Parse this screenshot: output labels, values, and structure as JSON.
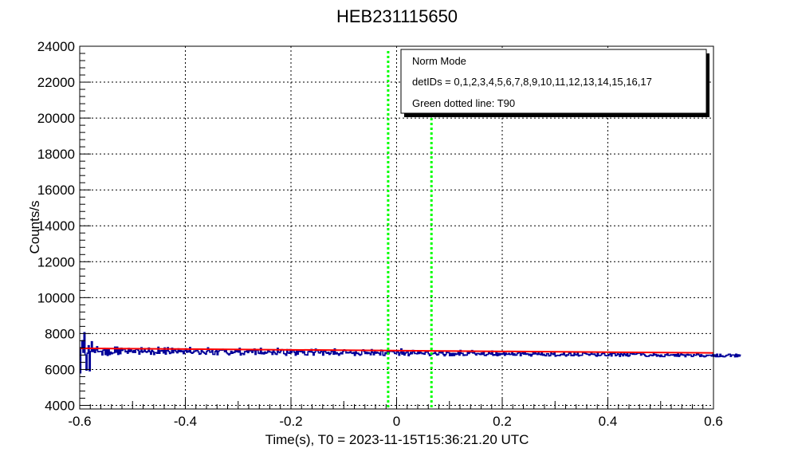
{
  "chart_data": {
    "type": "line",
    "title": "HEB231115650",
    "xlabel": "Time(s), T0 = 2023-11-15T15:36:21.20 UTC",
    "ylabel": "Counts/s",
    "xlim": [
      -0.6,
      0.6
    ],
    "ylim": [
      3800,
      24000
    ],
    "x_ticks": [
      -0.6,
      -0.4,
      -0.2,
      0,
      0.2,
      0.4,
      0.6
    ],
    "x_tick_labels": [
      "-0.6",
      "-0.4",
      "-0.2",
      "0",
      "0.2",
      "0.4",
      "0.6"
    ],
    "y_ticks": [
      4000,
      6000,
      8000,
      10000,
      12000,
      14000,
      16000,
      18000,
      20000,
      22000,
      24000
    ],
    "y_tick_labels": [
      "4000",
      "6000",
      "8000",
      "10000",
      "12000",
      "14000",
      "16000",
      "18000",
      "20000",
      "22000",
      "24000"
    ],
    "grid": true,
    "legend_position": "top-right",
    "legend": [
      "Norm Mode",
      "detIDs = 0,1,2,3,4,5,6,7,8,9,10,11,12,13,14,15,16,17",
      "Green dotted line: T90"
    ],
    "series": [
      {
        "kind": "histogram-step",
        "color": "#000099",
        "bin_width": 0.002,
        "x_start": -0.6,
        "values": [
          5813,
          7210,
          7602,
          6952,
          8048,
          6808,
          5965,
          6903,
          7324,
          5930,
          7003,
          7541,
          7001,
          7154,
          6948,
          7086,
          7264,
          6987,
          6999,
          6996,
          7012,
          6808,
          7074,
          7167,
          6835,
          7146,
          6781,
          7120,
          6834,
          6967,
          6878,
          6919,
          6924,
          7244,
          6960,
          7244,
          6838,
          7166,
          6875,
          7184,
          7061,
          7137,
          7133,
          6983,
          7019,
          6904,
          7169,
          6994,
          7160,
          7021,
          6949,
          7052,
          6948,
          7126,
          7121,
          7066,
          6856,
          6996,
          7210,
          6952,
          7009,
          7133,
          6993,
          6954,
          7007,
          7195,
          6987,
          6848,
          7062,
          7000,
          6833,
          6939,
          6937,
          6898,
          7239,
          6896,
          7043,
          7027,
          7055,
          6920,
          7198,
          6854,
          7050,
          7214,
          7006,
          6889,
          6926,
          7184,
          6932,
          7058,
          7089,
          6989,
          6928,
          7152,
          6992,
          7055,
          6989,
          7035,
          6882,
          7035,
          7149,
          6958,
          7040,
          6976,
          7223,
          6942,
          6901,
          6944,
          7033,
          7012,
          7054,
          7057,
          6970,
          6850,
          6875,
          7063,
          6988,
          6949,
          6898,
          6848,
          7012,
          7205,
          7061,
          6960,
          6968,
          7101,
          6841,
          6840,
          7001,
          7075,
          6820,
          7010,
          7078,
          7110,
          7075,
          7124,
          7082,
          6985,
          7049,
          6920,
          6867,
          6817,
          6883,
          7009,
          6901,
          6969,
          6935,
          7080,
          6990,
          7058,
          6968,
          7177,
          6805,
          6897,
          6885,
          6834,
          6992,
          6988,
          7037,
          6937,
          7106,
          7033,
          7105,
          6943,
          7051,
          7136,
          6839,
          7083,
          7066,
          6910,
          6889,
          7175,
          6876,
          6936,
          6868,
          6971,
          6902,
          6936,
          7046,
          7003,
          6965,
          6964,
          6837,
          7081,
          6952,
          6865,
          6837,
          7180,
          6967,
          6931,
          7037,
          7106,
          7094,
          6885,
          6866,
          6787,
          7108,
          6922,
          6900,
          7103,
          6938,
          7042,
          7073,
          6948,
          6796,
          7081,
          6855,
          7007,
          7005,
          6985,
          7064,
          6919,
          6997,
          6819,
          6818,
          6805,
          6988,
          7012,
          6974,
          7119,
          6956,
          6798,
          6947,
          7134,
          7045,
          7047,
          6926,
          6913,
          7039,
          6987,
          6798,
          7068,
          7004,
          6929,
          6899,
          6957,
          6840,
          6890,
          7006,
          7002,
          6847,
          7145,
          6863,
          6931,
          6870,
          6796,
          6879,
          6937,
          6873,
          7011,
          7096,
          7060,
          6922,
          6950,
          6921,
          6942,
          6994,
          6913,
          6893,
          6951,
          6784,
          6980,
          6885,
          6911,
          6849,
          6792,
          6839,
          7068,
          7097,
          7001,
          6889,
          6961,
          6880,
          6940,
          6902,
          6819,
          7108,
          6948,
          6821,
          6976,
          6902,
          6962,
          6922,
          6906,
          6809,
          7076,
          7025,
          6796,
          6778,
          6935,
          6876,
          7061,
          6887,
          7003,
          7043,
          7012,
          6996,
          6974,
          6895,
          6882,
          7052,
          6964,
          6792,
          6919,
          7142,
          6854,
          6969,
          6805,
          6909,
          6958,
          7036,
          6763,
          6857,
          6949,
          6874,
          7058,
          6974,
          6887,
          6891,
          6873,
          6985,
          6887,
          7010,
          6920,
          6875,
          6900,
          6850,
          6961,
          6985,
          6973,
          6869,
          6772,
          6821,
          6851,
          6885,
          6899,
          6947,
          6864,
          6804,
          6831,
          6948,
          6994,
          6916,
          6976,
          6836,
          6760,
          6830,
          6954,
          6937,
          6934,
          6769,
          6887,
          6772,
          6896,
          6777,
          6889,
          6836,
          6862,
          7011,
          6800,
          7060,
          6890,
          6902,
          6780,
          6813,
          6793,
          6804,
          6970,
          6890,
          6959,
          6960,
          7056,
          6913,
          6965,
          6869,
          6808,
          6891,
          6888,
          6861,
          6835,
          6917,
          6844,
          6940,
          6784,
          6774,
          6831,
          6842,
          6940,
          6900,
          6853,
          7027,
          6786,
          6826,
          6797,
          6980,
          6766,
          6897,
          6799,
          6882,
          6841,
          6858,
          6961,
          6787,
          6904,
          6846,
          6849,
          6897,
          6835,
          6847,
          6966,
          6798,
          6871,
          6796,
          6805,
          6893,
          6939,
          6972,
          6764,
          6896,
          6958,
          6854,
          7000,
          6845,
          6877,
          6862,
          6793,
          6851,
          6747,
          6837,
          6920,
          6868,
          6923,
          6869,
          6830,
          6943,
          6851,
          6824,
          6954,
          6792,
          6845,
          6783,
          6762,
          6880,
          6871,
          6753,
          6778,
          6949,
          6869,
          6831,
          6956,
          6738,
          6775,
          6789,
          6784,
          6771,
          6829,
          6848,
          6821,
          6958,
          6802,
          6741,
          6814,
          6797,
          6939,
          6904,
          6771,
          6802,
          6764,
          6916,
          6815,
          6812,
          6940,
          6748,
          6790,
          6789,
          6792,
          6919,
          6933,
          6895,
          6879,
          6850,
          6842,
          6793,
          6837,
          6923,
          6855,
          6837,
          6859,
          6782,
          6738,
          6916,
          6771,
          6774,
          6797,
          6872,
          6911,
          6894,
          6787,
          6770,
          6760,
          6770,
          6834,
          6929,
          6748,
          6911,
          6886,
          6894,
          6768,
          6797,
          6872,
          6840,
          6729,
          6902,
          6839,
          6760,
          6914,
          6840,
          6763,
          6888,
          6739,
          6765,
          6927,
          6887,
          6851,
          6892,
          6841,
          6848,
          6879,
          6902,
          6917,
          6905,
          6799,
          6863,
          6865,
          6832,
          6770,
          6728,
          6735,
          6730,
          6780,
          6813,
          6787,
          6763,
          6900,
          6809,
          6838,
          6739,
          6805,
          6776,
          6718,
          6808,
          6730,
          6715,
          6715,
          6824,
          6804,
          6864,
          6780,
          6783,
          6809,
          6819,
          6801,
          6830,
          6742,
          6828,
          6736,
          6865,
          6728,
          6801,
          6864,
          6826,
          6795,
          6813,
          6711,
          6809,
          6837,
          6791,
          6815,
          6808,
          6724,
          6726,
          6821,
          6796,
          6793,
          6870,
          6849,
          6806,
          6720,
          6823,
          6740,
          6762,
          6702,
          6722,
          6796,
          6775,
          6795,
          6795,
          6788,
          6746,
          6821,
          6734,
          6809,
          6713,
          6848,
          6708,
          6714,
          6845,
          6727,
          6762,
          6710,
          6706,
          6745,
          6789,
          6794,
          6843,
          6848,
          6728,
          6808,
          6806,
          6808,
          6706,
          6848,
          6708,
          6818,
          6743,
          6801
        ]
      },
      {
        "kind": "fit-line",
        "color": "#ff0000",
        "values": [
          [
            -0.6,
            7180
          ],
          [
            0.6,
            6920
          ]
        ]
      },
      {
        "kind": "t90-line",
        "color": "#00ff00",
        "x": -0.016
      },
      {
        "kind": "t90-line",
        "color": "#00ff00",
        "x": 0.066
      }
    ]
  },
  "colors": {
    "hist": "#000099",
    "fit": "#ff0000",
    "t90": "#00ff00",
    "axis": "#000000",
    "grid": "#000000"
  }
}
